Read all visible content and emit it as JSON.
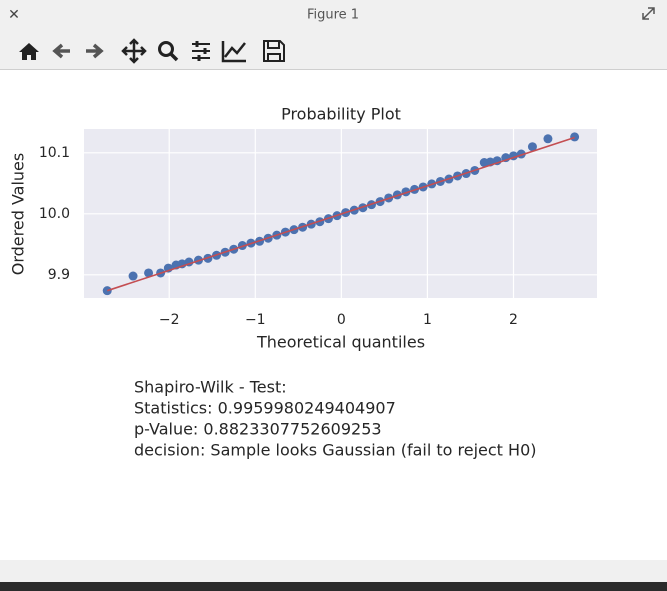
{
  "window": {
    "title": "Figure 1"
  },
  "chart_data": {
    "type": "scatter",
    "title": "Probability Plot",
    "x_label": "Theoretical quantiles",
    "y_label": "Ordered Values",
    "xlim": [
      -2.99,
      2.97
    ],
    "ylim": [
      9.862,
      10.139
    ],
    "xticks": [
      {
        "value": -2,
        "label": "−2"
      },
      {
        "value": -1,
        "label": "−1"
      },
      0,
      1,
      2
    ],
    "yticks": [
      9.9,
      {
        "value": 10,
        "label": "10.0"
      },
      10.1
    ],
    "grid": true,
    "background": "#eaeaf2",
    "series": [
      {
        "type": "scatter",
        "color": "#4c72b0",
        "x": [
          -2.72,
          -2.42,
          -2.24,
          -2.1,
          -2.01,
          -1.92,
          -1.85,
          -1.77,
          -1.66,
          -1.55,
          -1.45,
          -1.35,
          -1.25,
          -1.15,
          -1.05,
          -0.95,
          -0.85,
          -0.75,
          -0.65,
          -0.55,
          -0.45,
          -0.35,
          -0.25,
          -0.15,
          -0.05,
          0.05,
          0.15,
          0.25,
          0.35,
          0.45,
          0.55,
          0.65,
          0.75,
          0.85,
          0.95,
          1.05,
          1.15,
          1.25,
          1.35,
          1.45,
          1.55,
          1.66,
          1.73,
          1.81,
          1.91,
          2.0,
          2.09,
          2.22,
          2.4,
          2.71
        ],
        "values": [
          9.874,
          9.898,
          9.903,
          9.903,
          9.911,
          9.916,
          9.918,
          9.921,
          9.924,
          9.927,
          9.932,
          9.937,
          9.942,
          9.948,
          9.952,
          9.955,
          9.96,
          9.965,
          9.97,
          9.974,
          9.978,
          9.983,
          9.987,
          9.992,
          9.997,
          10.002,
          10.006,
          10.01,
          10.015,
          10.02,
          10.026,
          10.031,
          10.036,
          10.04,
          10.044,
          10.049,
          10.053,
          10.057,
          10.062,
          10.066,
          10.071,
          10.084,
          10.085,
          10.087,
          10.092,
          10.095,
          10.098,
          10.11,
          10.123,
          10.126
        ]
      },
      {
        "type": "line",
        "color": "#c44e52",
        "x": [
          -2.72,
          2.71
        ],
        "values": [
          9.874,
          10.125
        ]
      }
    ]
  },
  "text_block": [
    "Shapiro-Wilk - Test:",
    "Statistics: 0.9959980249404907",
    "p-Value: 0.8823307752609253",
    "decision: Sample looks Gaussian (fail to reject H0)"
  ]
}
